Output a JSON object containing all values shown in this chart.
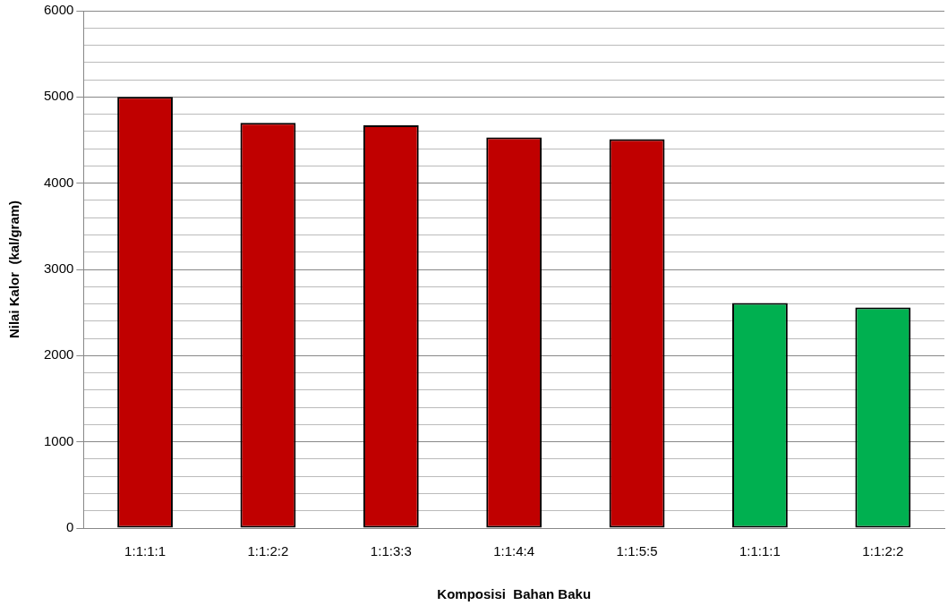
{
  "chart_data": {
    "type": "bar",
    "xlabel": "Komposisi  Bahan Baku",
    "ylabel": "Nilai Kalor  (kal/gram)",
    "categories": [
      "1:1:1:1",
      "1:1:2:2",
      "1:1:3:3",
      "1:1:4:4",
      "1:1:5:5",
      "1:1:1:1",
      "1:1:2:2"
    ],
    "values": [
      5000,
      4700,
      4670,
      4530,
      4510,
      2610,
      2560
    ],
    "colors": [
      "#c00000",
      "#c00000",
      "#c00000",
      "#c00000",
      "#c00000",
      "#00b050",
      "#00b050"
    ],
    "ylim": [
      0,
      6000
    ],
    "yticks": [
      0,
      {
        "value": 200,
        "label": null
      },
      {
        "value": 400,
        "label": null
      },
      {
        "value": 600,
        "label": null
      },
      {
        "value": 800,
        "label": null
      },
      1000,
      {
        "value": 1200,
        "label": null
      },
      {
        "value": 1400,
        "label": null
      },
      {
        "value": 1600,
        "label": null
      },
      {
        "value": 1800,
        "label": null
      },
      2000,
      {
        "value": 2200,
        "label": null
      },
      {
        "value": 2400,
        "label": null
      },
      {
        "value": 2600,
        "label": null
      },
      {
        "value": 2800,
        "label": null
      },
      3000,
      {
        "value": 3200,
        "label": null
      },
      {
        "value": 3400,
        "label": null
      },
      {
        "value": 3600,
        "label": null
      },
      {
        "value": 3800,
        "label": null
      },
      4000,
      {
        "value": 4200,
        "label": null
      },
      {
        "value": 4400,
        "label": null
      },
      {
        "value": 4600,
        "label": null
      },
      {
        "value": 4800,
        "label": null
      },
      5000,
      {
        "value": 5200,
        "label": null
      },
      {
        "value": 5400,
        "label": null
      },
      {
        "value": 5600,
        "label": null
      },
      {
        "value": 5800,
        "label": null
      },
      6000
    ],
    "grid": "y",
    "legend": false
  }
}
